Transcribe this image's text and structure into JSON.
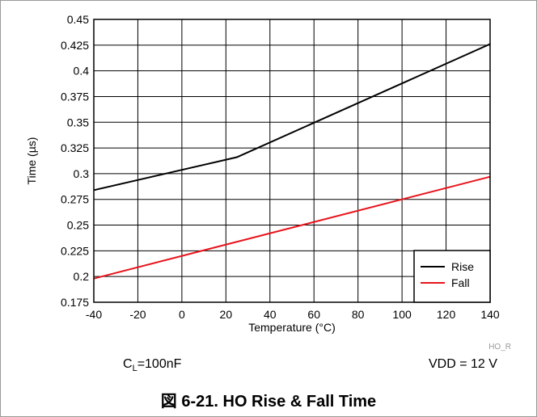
{
  "chart_data": {
    "type": "line",
    "xlabel": "Temperature (°C)",
    "ylabel": "Time (µs)",
    "xlim": [
      -40,
      140
    ],
    "ylim": [
      0.175,
      0.45
    ],
    "x_ticks": [
      -40,
      -20,
      0,
      20,
      40,
      60,
      80,
      100,
      120,
      140
    ],
    "x_tick_labels": [
      "-40",
      "-20",
      "0",
      "20",
      "40",
      "60",
      "80",
      "100",
      "120",
      "140"
    ],
    "y_ticks": [
      0.175,
      0.2,
      0.225,
      0.25,
      0.275,
      0.3,
      0.325,
      0.35,
      0.375,
      0.4,
      0.425,
      0.45
    ],
    "y_tick_labels": [
      "0.175",
      "0.2",
      "0.225",
      "0.25",
      "0.275",
      "0.3",
      "0.325",
      "0.35",
      "0.375",
      "0.4",
      "0.425",
      "0.45"
    ],
    "grid": true,
    "legend_position": "bottom-right",
    "series": [
      {
        "name": "Rise",
        "color": "#000000",
        "x": [
          -40,
          25,
          140
        ],
        "y": [
          0.284,
          0.316,
          0.426
        ]
      },
      {
        "name": "Fall",
        "color": "#e8141c",
        "x": [
          -40,
          140
        ],
        "y": [
          0.198,
          0.297
        ]
      }
    ]
  },
  "notes": {
    "cl_main": "C",
    "cl_sub": "L",
    "cl_rest": "=100nF",
    "vdd": "VDD = 12 V"
  },
  "figure_code": "HO_R",
  "caption": "図 6-21. HO Rise & Fall Time"
}
